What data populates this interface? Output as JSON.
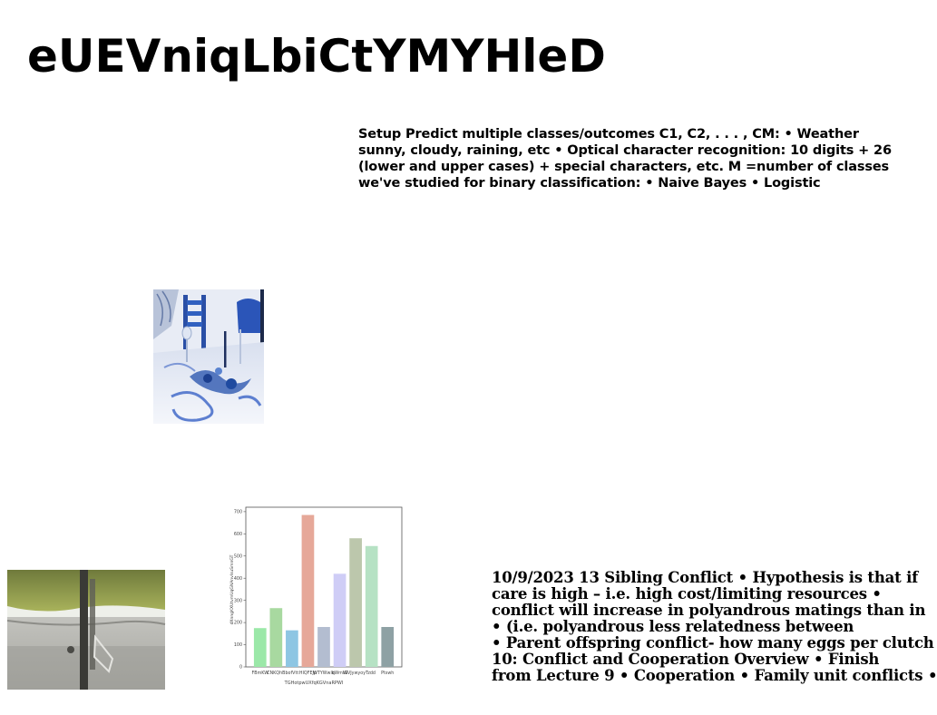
{
  "title": "eUEVniqLbiCtYMYHleD",
  "text_block_a": {
    "lines": [
      "Setup Predict multiple classes/outcomes C1, C2, . . . , CM: • Weather",
      "sunny, cloudy, raining, etc • Optical character recognition: 10 digits + 26",
      "(lower and upper cases) + special characters, etc. M =number of classes",
      "we've studied for binary classification: • Naive Bayes • Logistic"
    ]
  },
  "text_block_b": {
    "lines": [
      "10/9/2023 13 Sibling Conflict • Hypothesis is that if",
      "care is high – i.e. high cost/limiting resources •",
      "conflict will increase in polyandrous matings than in",
      "• (i.e. polyandrous less relatedness between",
      "• Parent offspring conflict- how many eggs per clutch",
      "10: Conflict and Cooperation Overview • Finish",
      "from Lecture 9 • Cooperation • Family unit conflicts •"
    ]
  },
  "images": {
    "table_photo": "table-setting-photo",
    "grass_photo": "grass-edge-photo"
  },
  "chart_data": {
    "type": "bar",
    "categories": [
      "FBmKW",
      "CNKQhB",
      "bofVtt",
      "HIQFEJp",
      "WTYWwlq",
      "kWmtG",
      "WVJywyoyT",
      "zdd",
      "Ptswh"
    ],
    "values": [
      175,
      265,
      165,
      685,
      180,
      420,
      580,
      545,
      180
    ],
    "colors": [
      "#9be8a8",
      "#a8d9a0",
      "#8ec6e3",
      "#e6a899",
      "#b3bdd0",
      "#cfcdf6",
      "#bcc7ac",
      "#b6e2c4",
      "#8ea1a4"
    ],
    "ylim": [
      0,
      720
    ],
    "yticks": [
      0,
      100,
      200,
      300,
      400,
      500,
      600,
      700
    ],
    "xlabel": "TGHotpwUXfqKGVnaRPWI",
    "ylabel": "dXnngKXUtvmUqGNAnvlsuSmnGT",
    "grid": false,
    "legend": "none"
  }
}
